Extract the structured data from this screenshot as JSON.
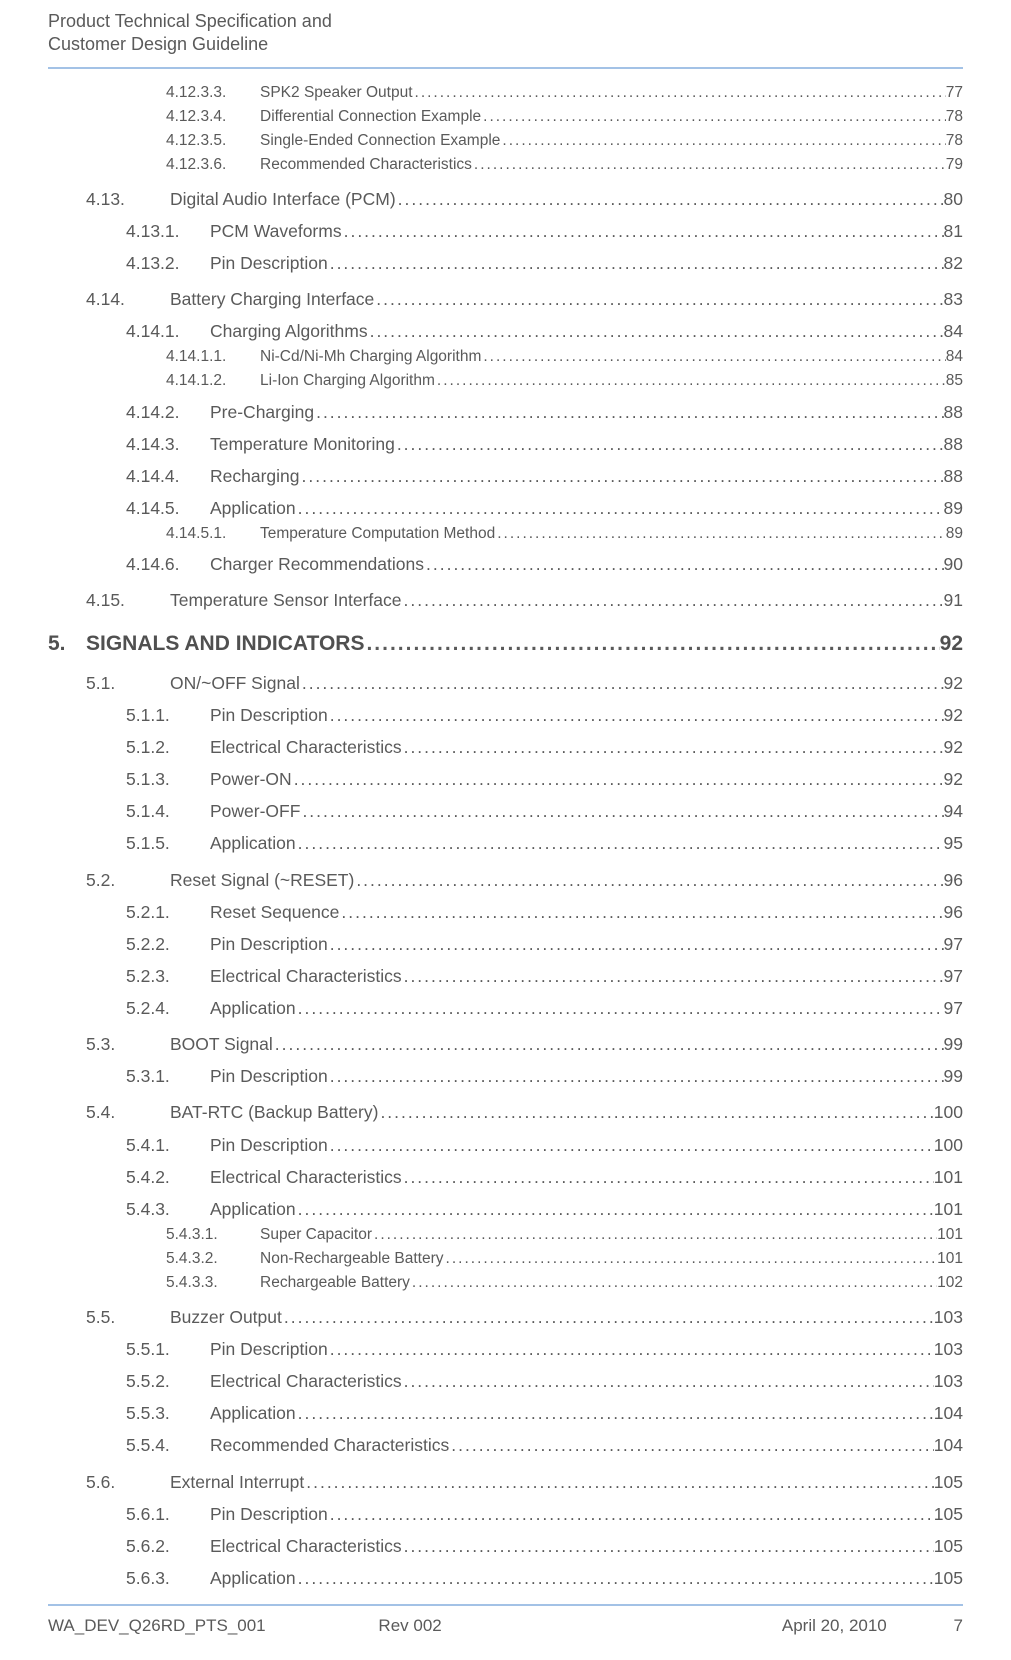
{
  "header": {
    "line1": "Product Technical Specification and",
    "line2": "Customer Design Guideline"
  },
  "toc": [
    {
      "lvl": 4,
      "num": "4.12.3.3.",
      "title": "SPK2 Speaker Output",
      "pg": "77"
    },
    {
      "lvl": 4,
      "num": "4.12.3.4.",
      "title": "Differential Connection Example ",
      "pg": "78"
    },
    {
      "lvl": 4,
      "num": "4.12.3.5.",
      "title": "Single-Ended Connection Example ",
      "pg": "78"
    },
    {
      "lvl": 4,
      "num": "4.12.3.6.",
      "title": "Recommended Characteristics ",
      "pg": "79"
    },
    {
      "lvl": 2,
      "num": "4.13.",
      "title": "Digital Audio Interface (PCM)",
      "pg": "80"
    },
    {
      "lvl": 3,
      "num": "4.13.1.",
      "title": "PCM Waveforms",
      "pg": "81"
    },
    {
      "lvl": 3,
      "num": "4.13.2.",
      "title": "Pin Description ",
      "pg": "82"
    },
    {
      "lvl": 2,
      "num": "4.14.",
      "title": "Battery Charging Interface ",
      "pg": "83"
    },
    {
      "lvl": 3,
      "num": "4.14.1.",
      "title": "Charging Algorithms ",
      "pg": "84"
    },
    {
      "lvl": 4,
      "num": "4.14.1.1.",
      "title": "Ni-Cd/Ni-Mh Charging Algorithm ",
      "pg": "84"
    },
    {
      "lvl": 4,
      "num": "4.14.1.2.",
      "title": "Li-Ion Charging Algorithm ",
      "pg": "85"
    },
    {
      "lvl": 3,
      "num": "4.14.2.",
      "title": "Pre-Charging ",
      "pg": "88"
    },
    {
      "lvl": 3,
      "num": "4.14.3.",
      "title": "Temperature Monitoring",
      "pg": "88"
    },
    {
      "lvl": 3,
      "num": "4.14.4.",
      "title": "Recharging ",
      "pg": "88"
    },
    {
      "lvl": 3,
      "num": "4.14.5.",
      "title": "Application",
      "pg": "89"
    },
    {
      "lvl": 4,
      "num": "4.14.5.1.",
      "title": "Temperature Computation Method ",
      "pg": "89"
    },
    {
      "lvl": 3,
      "num": "4.14.6.",
      "title": "Charger Recommendations ",
      "pg": "90"
    },
    {
      "lvl": 2,
      "num": "4.15.",
      "title": "Temperature Sensor Interface ",
      "pg": "91"
    },
    {
      "lvl": 1,
      "num": "5.",
      "title": "SIGNALS AND INDICATORS",
      "pg": "92"
    },
    {
      "lvl": 2,
      "num": "5.1.",
      "title": "ON/~OFF Signal",
      "pg": "92"
    },
    {
      "lvl": 3,
      "num": "5.1.1.",
      "title": "Pin Description ",
      "pg": "92"
    },
    {
      "lvl": 3,
      "num": "5.1.2.",
      "title": "Electrical Characteristics",
      "pg": "92"
    },
    {
      "lvl": 3,
      "num": "5.1.3.",
      "title": "Power-ON",
      "pg": "92"
    },
    {
      "lvl": 3,
      "num": "5.1.4.",
      "title": "Power-OFF",
      "pg": "94"
    },
    {
      "lvl": 3,
      "num": "5.1.5.",
      "title": "Application",
      "pg": "95"
    },
    {
      "lvl": 2,
      "num": "5.2.",
      "title": "Reset Signal (~RESET)",
      "pg": "96"
    },
    {
      "lvl": 3,
      "num": "5.2.1.",
      "title": "Reset Sequence ",
      "pg": "96"
    },
    {
      "lvl": 3,
      "num": "5.2.2.",
      "title": "Pin Description ",
      "pg": "97"
    },
    {
      "lvl": 3,
      "num": "5.2.3.",
      "title": "Electrical Characteristics",
      "pg": "97"
    },
    {
      "lvl": 3,
      "num": "5.2.4.",
      "title": "Application",
      "pg": "97"
    },
    {
      "lvl": 2,
      "num": "5.3.",
      "title": "BOOT Signal ",
      "pg": "99"
    },
    {
      "lvl": 3,
      "num": "5.3.1.",
      "title": "Pin Description ",
      "pg": "99"
    },
    {
      "lvl": 2,
      "num": "5.4.",
      "title": "BAT-RTC (Backup Battery)",
      "pg": "100"
    },
    {
      "lvl": 3,
      "num": "5.4.1.",
      "title": "Pin Description ",
      "pg": "100"
    },
    {
      "lvl": 3,
      "num": "5.4.2.",
      "title": "Electrical Characteristics",
      "pg": "101"
    },
    {
      "lvl": 3,
      "num": "5.4.3.",
      "title": "Application",
      "pg": "101"
    },
    {
      "lvl": 4,
      "num": "5.4.3.1.",
      "title": "Super Capacitor ",
      "pg": "101"
    },
    {
      "lvl": 4,
      "num": "5.4.3.2.",
      "title": "Non-Rechargeable Battery",
      "pg": "101"
    },
    {
      "lvl": 4,
      "num": "5.4.3.3.",
      "title": "Rechargeable Battery",
      "pg": "102"
    },
    {
      "lvl": 2,
      "num": "5.5.",
      "title": "Buzzer Output",
      "pg": "103"
    },
    {
      "lvl": 3,
      "num": "5.5.1.",
      "title": "Pin Description ",
      "pg": "103"
    },
    {
      "lvl": 3,
      "num": "5.5.2.",
      "title": "Electrical Characteristics",
      "pg": "103"
    },
    {
      "lvl": 3,
      "num": "5.5.3.",
      "title": "Application",
      "pg": "104"
    },
    {
      "lvl": 3,
      "num": "5.5.4.",
      "title": "Recommended Characteristics ",
      "pg": "104"
    },
    {
      "lvl": 2,
      "num": "5.6.",
      "title": "External Interrupt",
      "pg": "105"
    },
    {
      "lvl": 3,
      "num": "5.6.1.",
      "title": "Pin Description ",
      "pg": "105"
    },
    {
      "lvl": 3,
      "num": "5.6.2.",
      "title": "Electrical Characteristics",
      "pg": "105"
    },
    {
      "lvl": 3,
      "num": "5.6.3.",
      "title": "Application",
      "pg": "105"
    }
  ],
  "footer": {
    "doc_id": "WA_DEV_Q26RD_PTS_001",
    "rev": "Rev 002",
    "date": "April 20, 2010",
    "page": "7"
  }
}
